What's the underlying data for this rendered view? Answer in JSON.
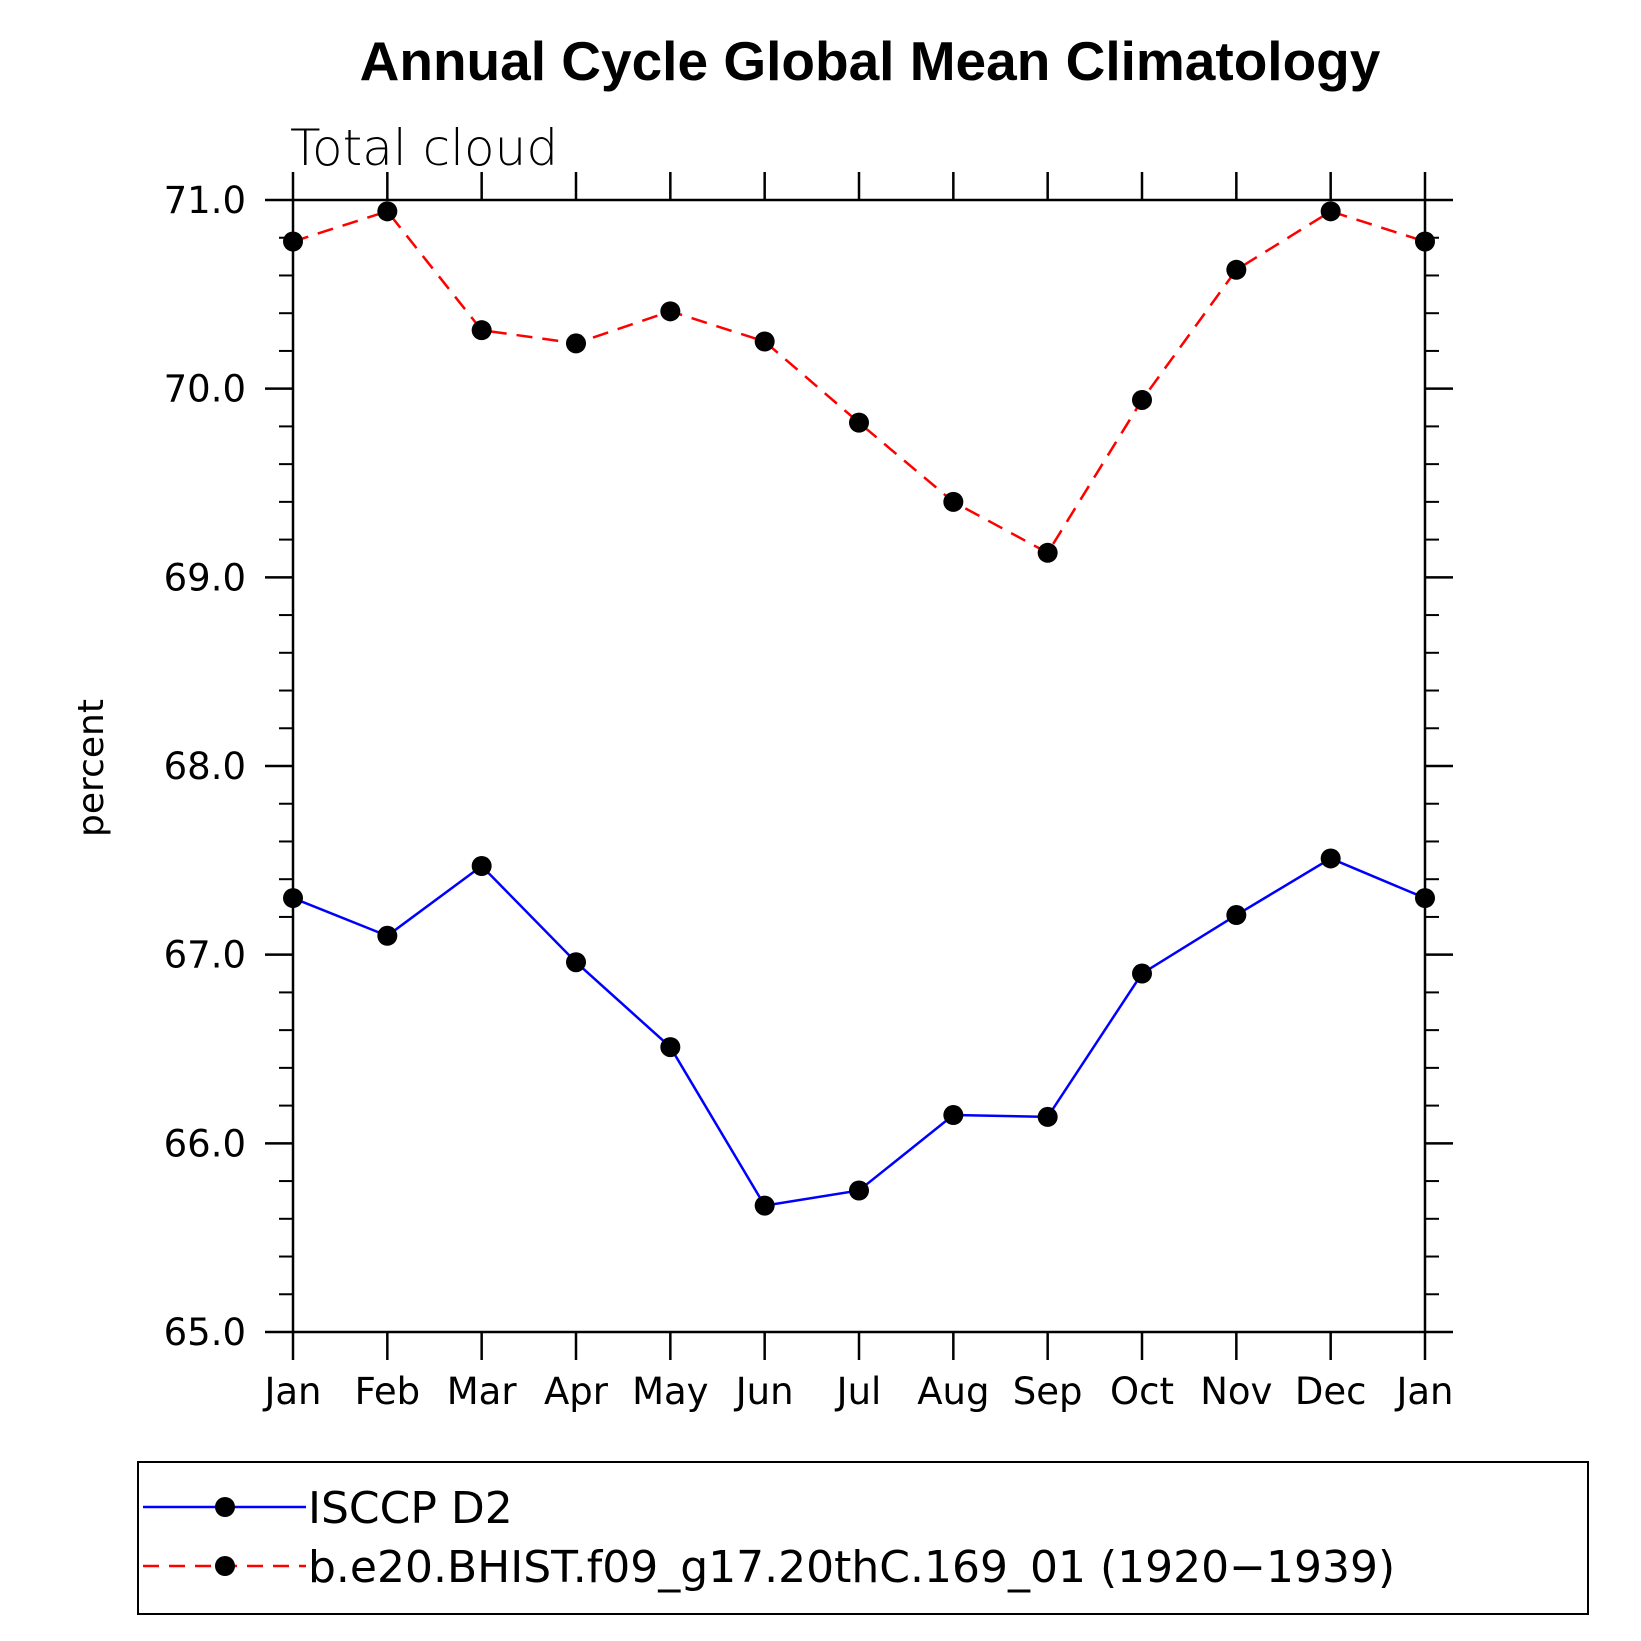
{
  "chart_data": {
    "type": "line",
    "title": "Annual Cycle Global Mean Climatology",
    "subtitle": "Total cloud",
    "xlabel": "",
    "ylabel": "percent",
    "categories": [
      "Jan",
      "Feb",
      "Mar",
      "Apr",
      "May",
      "Jun",
      "Jul",
      "Aug",
      "Sep",
      "Oct",
      "Nov",
      "Dec",
      "Jan"
    ],
    "ylim": [
      65.0,
      71.0
    ],
    "yticks": [
      "65.0",
      "66.0",
      "67.0",
      "68.0",
      "69.0",
      "70.0",
      "71.0"
    ],
    "yticks_values": [
      65,
      66,
      67,
      68,
      69,
      70,
      71
    ],
    "series": [
      {
        "name": "ISCCP D2",
        "color": "#0000ff",
        "dash": "solid",
        "marker": "filled-circle",
        "values": [
          67.3,
          67.1,
          67.47,
          66.96,
          66.51,
          65.67,
          65.75,
          66.15,
          66.14,
          66.9,
          67.21,
          67.51,
          67.3
        ]
      },
      {
        "name": "b.e20.BHIST.f09_g17.20thC.169_01 (1920-1939)",
        "color": "#ff0000",
        "dash": "dashed",
        "marker": "filled-circle",
        "values": [
          70.78,
          70.94,
          70.31,
          70.24,
          70.41,
          70.25,
          69.82,
          69.4,
          69.13,
          69.94,
          70.63,
          70.94,
          70.78
        ]
      }
    ],
    "grid": false,
    "legend_position": "bottom"
  },
  "legend": {
    "items": [
      {
        "label": "ISCCP D2"
      },
      {
        "label": "b.e20.BHIST.f09_g17.20thC.169_01 (1920−1939)"
      }
    ]
  },
  "colors": {
    "marker": "#000000",
    "axis": "#000000"
  }
}
